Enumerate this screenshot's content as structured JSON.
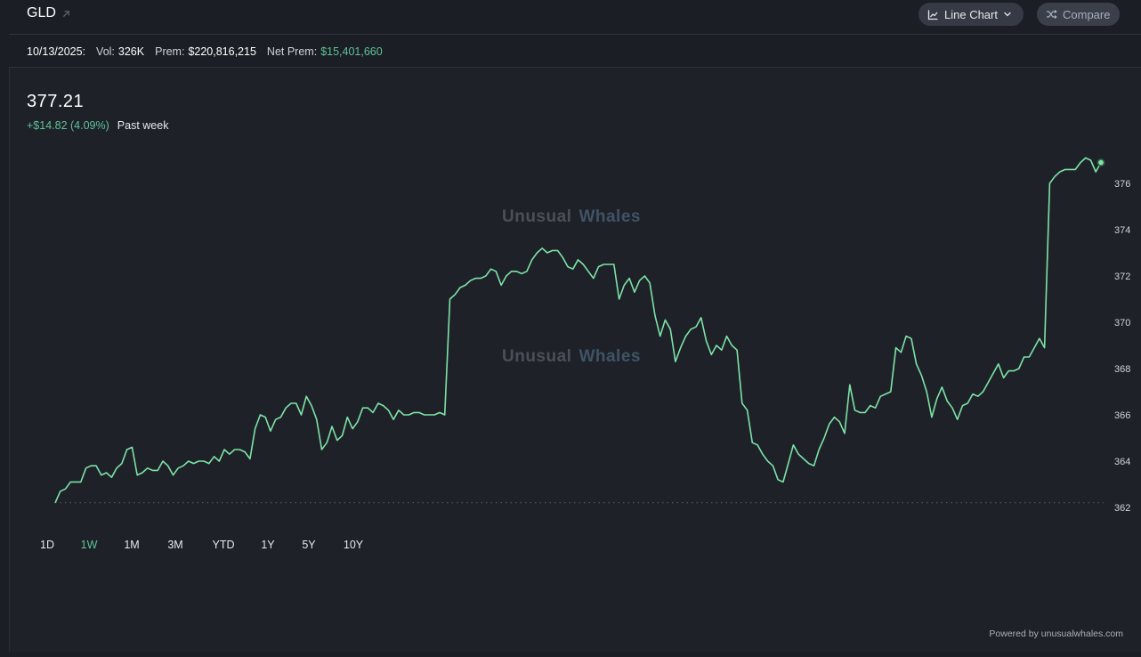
{
  "header": {
    "ticker": "GLD",
    "chart_type_label": "Line Chart",
    "compare_label": "Compare"
  },
  "stats": {
    "date": "10/13/2025:",
    "vol_label": "Vol:",
    "vol_value": "326K",
    "prem_label": "Prem:",
    "prem_value": "$220,816,215",
    "net_prem_label": "Net Prem:",
    "net_prem_value": "$15,401,660"
  },
  "quote": {
    "price": "377.21",
    "change": "+$14.82 (4.09%)",
    "period": "Past week"
  },
  "watermark": {
    "part1": "Unusual",
    "part2": "Whales"
  },
  "ranges": [
    {
      "label": "1D",
      "active": false
    },
    {
      "label": "1W",
      "active": true
    },
    {
      "label": "1M",
      "active": false
    },
    {
      "label": "3M",
      "active": false
    },
    {
      "label": "YTD",
      "active": false
    },
    {
      "label": "1Y",
      "active": false
    },
    {
      "label": "5Y",
      "active": false
    },
    {
      "label": "10Y",
      "active": false
    }
  ],
  "footer": {
    "powered_by": "Powered by unusualwhales.com"
  },
  "colors": {
    "line": "#7de3a6",
    "positive": "#5fc296",
    "background": "#1e2128"
  },
  "chart_data": {
    "type": "line",
    "title": "",
    "xlabel": "",
    "ylabel": "",
    "ylim": [
      362,
      377.3
    ],
    "y_ticks": [
      362,
      364,
      366,
      368,
      370,
      372,
      374,
      376
    ],
    "baseline": 362.2,
    "grid": false,
    "values": [
      362.2,
      362.7,
      362.8,
      363.1,
      363.1,
      363.1,
      363.7,
      363.8,
      363.8,
      363.4,
      363.5,
      363.3,
      363.7,
      363.9,
      364.5,
      364.6,
      363.4,
      363.5,
      363.7,
      363.6,
      363.6,
      364.0,
      363.8,
      363.4,
      363.7,
      363.8,
      364.0,
      363.9,
      364.0,
      364.0,
      363.9,
      364.2,
      364.0,
      364.5,
      364.3,
      364.5,
      364.5,
      364.4,
      364.1,
      365.4,
      366.0,
      365.9,
      365.3,
      365.8,
      365.9,
      366.3,
      366.5,
      366.5,
      366.0,
      366.8,
      366.4,
      365.8,
      364.5,
      364.8,
      365.5,
      364.9,
      365.1,
      365.9,
      365.4,
      365.7,
      366.3,
      366.3,
      366.1,
      366.5,
      366.4,
      366.2,
      365.8,
      366.2,
      366.0,
      366.0,
      366.1,
      366.1,
      366.0,
      366.0,
      366.0,
      366.1,
      366.0,
      371.0,
      371.2,
      371.5,
      371.6,
      371.8,
      371.9,
      371.9,
      372.0,
      372.3,
      372.2,
      371.6,
      372.0,
      372.2,
      372.2,
      372.1,
      372.2,
      372.7,
      373.0,
      373.2,
      373.0,
      373.1,
      373.1,
      372.8,
      372.4,
      372.3,
      372.7,
      372.5,
      372.2,
      371.9,
      372.4,
      372.5,
      372.5,
      372.5,
      371.0,
      371.6,
      371.9,
      371.3,
      371.8,
      372.0,
      371.7,
      370.3,
      369.4,
      370.1,
      369.7,
      368.3,
      368.9,
      369.4,
      369.7,
      369.8,
      370.2,
      369.2,
      368.6,
      369.0,
      368.8,
      369.4,
      369.0,
      368.8,
      366.5,
      366.2,
      364.8,
      364.7,
      364.3,
      364.0,
      363.8,
      363.2,
      363.1,
      363.9,
      364.7,
      364.3,
      364.1,
      363.9,
      363.8,
      364.5,
      365.0,
      365.6,
      365.9,
      365.7,
      365.2,
      367.3,
      366.2,
      366.1,
      366.1,
      366.4,
      366.3,
      366.8,
      366.9,
      367.0,
      368.9,
      368.7,
      369.4,
      369.3,
      368.2,
      367.7,
      367.0,
      365.9,
      366.7,
      367.2,
      366.6,
      366.3,
      365.8,
      366.4,
      366.5,
      366.9,
      366.8,
      367.0,
      367.4,
      367.8,
      368.2,
      367.6,
      367.9,
      367.9,
      368.0,
      368.5,
      368.5,
      368.9,
      369.3,
      368.9,
      376.0,
      376.3,
      376.5,
      376.6,
      376.6,
      376.6,
      376.9,
      377.1,
      377.0,
      376.5,
      376.9
    ]
  }
}
